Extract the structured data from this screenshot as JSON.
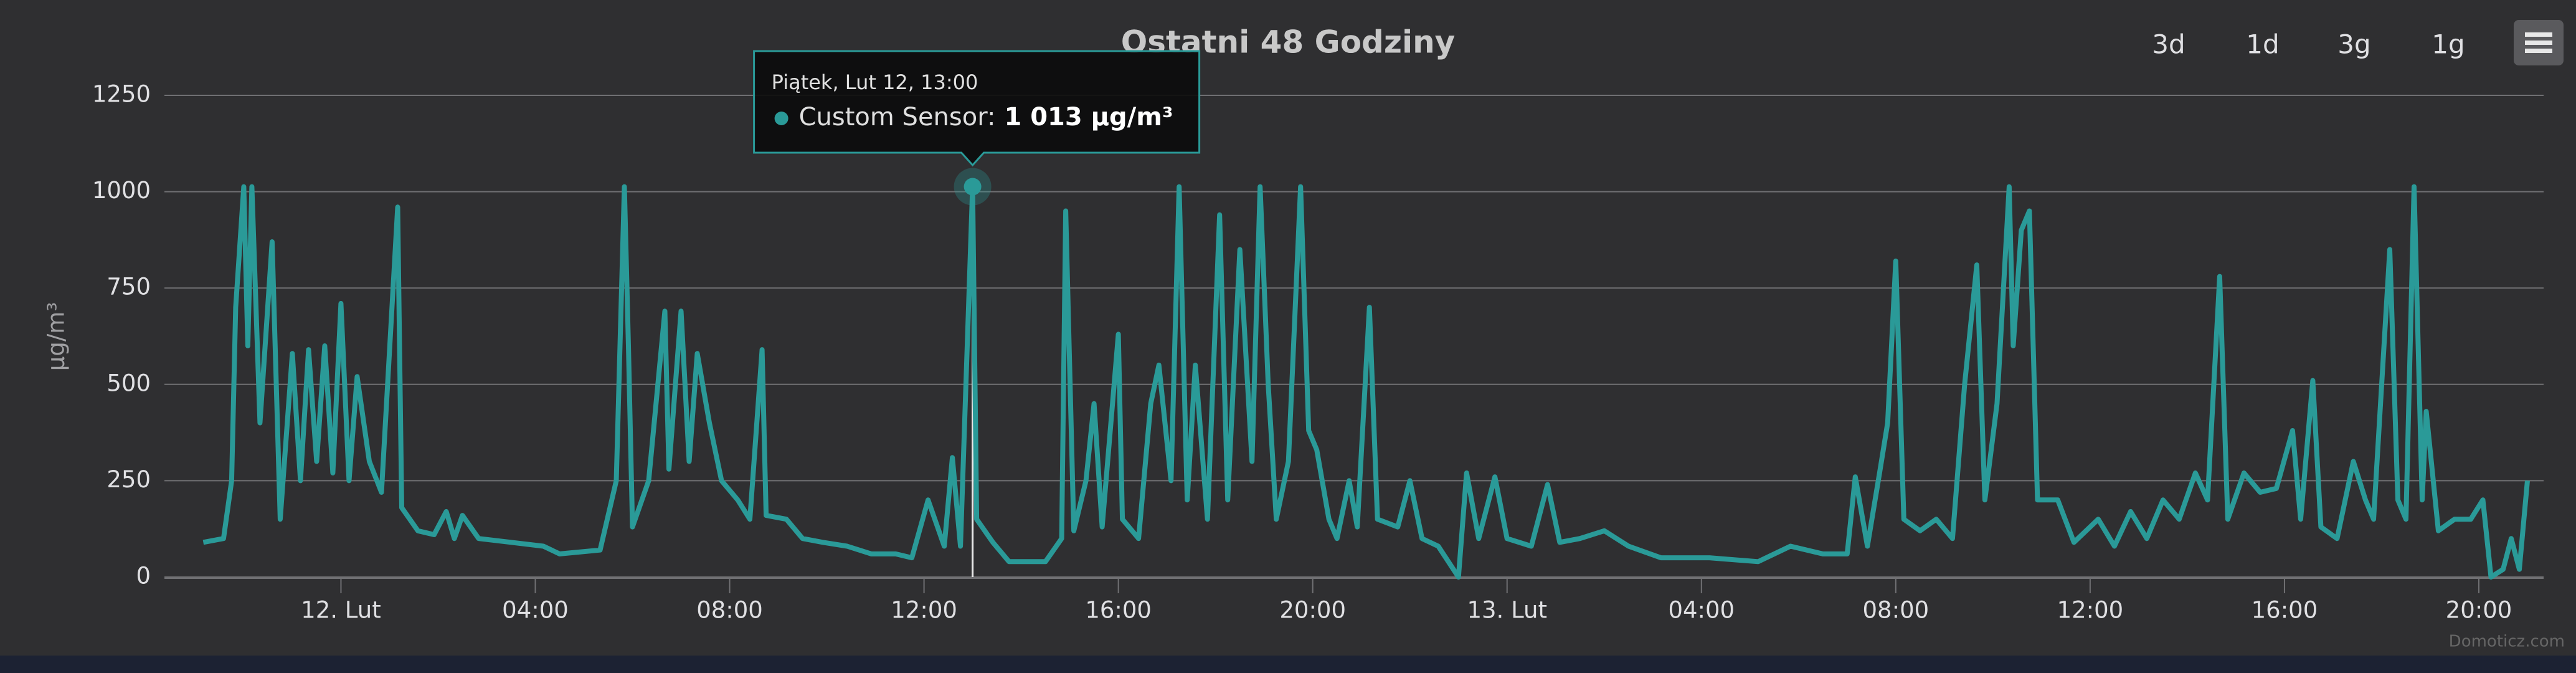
{
  "chart_data": {
    "type": "line",
    "title": "Ostatni 48 Godziny",
    "y_label": "µg/m³",
    "buttons": [
      "3d",
      "1d",
      "3g",
      "1g"
    ],
    "credit": "Domoticz.com",
    "xlim": [
      "Lut 11, 20:22",
      "Lut 13, 21:20"
    ],
    "xticks": [
      {
        "value": "Lut 12, 00:00",
        "label": "12. Lut"
      },
      {
        "value": "Lut 12, 04:00",
        "label": "04:00"
      },
      {
        "value": "Lut 12, 08:00",
        "label": "08:00"
      },
      {
        "value": "Lut 12, 12:00",
        "label": "12:00"
      },
      {
        "value": "Lut 12, 16:00",
        "label": "16:00"
      },
      {
        "value": "Lut 12, 20:00",
        "label": "20:00"
      },
      {
        "value": "Lut 13, 00:00",
        "label": "13. Lut"
      },
      {
        "value": "Lut 13, 04:00",
        "label": "04:00"
      },
      {
        "value": "Lut 13, 08:00",
        "label": "08:00"
      },
      {
        "value": "Lut 13, 12:00",
        "label": "12:00"
      },
      {
        "value": "Lut 13, 16:00",
        "label": "16:00"
      },
      {
        "value": "Lut 13, 20:00",
        "label": "20:00"
      }
    ],
    "ylim": [
      0,
      1250
    ],
    "yticks": [
      0,
      250,
      500,
      750,
      1000,
      1250
    ],
    "grid": true,
    "x": [
      "Lut 11, 21:10",
      "Lut 11, 21:35",
      "Lut 11, 21:45",
      "Lut 11, 21:50",
      "Lut 11, 22:00",
      "Lut 11, 22:05",
      "Lut 11, 22:10",
      "Lut 11, 22:20",
      "Lut 11, 22:35",
      "Lut 11, 22:45",
      "Lut 11, 23:00",
      "Lut 11, 23:10",
      "Lut 11, 23:20",
      "Lut 11, 23:30",
      "Lut 11, 23:40",
      "Lut 11, 23:50",
      "Lut 12, 00:00",
      "Lut 12, 00:10",
      "Lut 12, 00:20",
      "Lut 12, 00:35",
      "Lut 12, 00:50",
      "Lut 12, 01:10",
      "Lut 12, 01:15",
      "Lut 12, 01:35",
      "Lut 12, 01:55",
      "Lut 12, 02:10",
      "Lut 12, 02:20",
      "Lut 12, 02:30",
      "Lut 12, 02:50",
      "Lut 12, 03:30",
      "Lut 12, 04:10",
      "Lut 12, 04:30",
      "Lut 12, 05:20",
      "Lut 12, 05:40",
      "Lut 12, 05:50",
      "Lut 12, 05:55",
      "Lut 12, 06:00",
      "Lut 12, 06:20",
      "Lut 12, 06:40",
      "Lut 12, 06:45",
      "Lut 12, 07:00",
      "Lut 12, 07:10",
      "Lut 12, 07:20",
      "Lut 12, 07:35",
      "Lut 12, 07:50",
      "Lut 12, 08:10",
      "Lut 12, 08:25",
      "Lut 12, 08:40",
      "Lut 12, 08:45",
      "Lut 12, 09:10",
      "Lut 12, 09:30",
      "Lut 12, 09:55",
      "Lut 12, 10:25",
      "Lut 12, 10:55",
      "Lut 12, 11:25",
      "Lut 12, 11:45",
      "Lut 12, 12:05",
      "Lut 12, 12:25",
      "Lut 12, 12:35",
      "Lut 12, 12:45",
      "Lut 12, 13:00",
      "Lut 12, 13:05",
      "Lut 12, 13:25",
      "Lut 12, 13:45",
      "Lut 12, 14:30",
      "Lut 12, 14:50",
      "Lut 12, 14:55",
      "Lut 12, 15:05",
      "Lut 12, 15:20",
      "Lut 12, 15:30",
      "Lut 12, 15:40",
      "Lut 12, 16:00",
      "Lut 12, 16:05",
      "Lut 12, 16:25",
      "Lut 12, 16:40",
      "Lut 12, 16:50",
      "Lut 12, 17:05",
      "Lut 12, 17:15",
      "Lut 12, 17:25",
      "Lut 12, 17:35",
      "Lut 12, 17:50",
      "Lut 12, 18:05",
      "Lut 12, 18:15",
      "Lut 12, 18:30",
      "Lut 12, 18:45",
      "Lut 12, 18:55",
      "Lut 12, 19:05",
      "Lut 12, 19:15",
      "Lut 12, 19:30",
      "Lut 12, 19:45",
      "Lut 12, 19:55",
      "Lut 12, 20:05",
      "Lut 12, 20:20",
      "Lut 12, 20:30",
      "Lut 12, 20:45",
      "Lut 12, 20:55",
      "Lut 12, 21:10",
      "Lut 12, 21:20",
      "Lut 12, 21:45",
      "Lut 12, 22:00",
      "Lut 12, 22:15",
      "Lut 12, 22:35",
      "Lut 12, 23:00",
      "Lut 12, 23:10",
      "Lut 12, 23:25",
      "Lut 12, 23:45",
      "Lut 13, 00:00",
      "Lut 13, 00:30",
      "Lut 13, 00:50",
      "Lut 13, 01:05",
      "Lut 13, 01:30",
      "Lut 13, 02:00",
      "Lut 13, 02:30",
      "Lut 13, 03:10",
      "Lut 13, 04:10",
      "Lut 13, 05:10",
      "Lut 13, 05:50",
      "Lut 13, 06:30",
      "Lut 13, 07:00",
      "Lut 13, 07:10",
      "Lut 13, 07:25",
      "Lut 13, 07:40",
      "Lut 13, 07:50",
      "Lut 13, 08:00",
      "Lut 13, 08:10",
      "Lut 13, 08:30",
      "Lut 13, 08:50",
      "Lut 13, 09:10",
      "Lut 13, 09:25",
      "Lut 13, 09:40",
      "Lut 13, 09:50",
      "Lut 13, 10:05",
      "Lut 13, 10:20",
      "Lut 13, 10:25",
      "Lut 13, 10:35",
      "Lut 13, 10:45",
      "Lut 13, 10:55",
      "Lut 13, 11:20",
      "Lut 13, 11:40",
      "Lut 13, 12:10",
      "Lut 13, 12:30",
      "Lut 13, 12:50",
      "Lut 13, 13:10",
      "Lut 13, 13:30",
      "Lut 13, 13:50",
      "Lut 13, 14:10",
      "Lut 13, 14:25",
      "Lut 13, 14:40",
      "Lut 13, 14:50",
      "Lut 13, 15:10",
      "Lut 13, 15:30",
      "Lut 13, 15:50",
      "Lut 13, 16:10",
      "Lut 13, 16:20",
      "Lut 13, 16:35",
      "Lut 13, 16:45",
      "Lut 13, 17:05",
      "Lut 13, 17:25",
      "Lut 13, 17:40",
      "Lut 13, 17:50",
      "Lut 13, 18:10",
      "Lut 13, 18:20",
      "Lut 13, 18:30",
      "Lut 13, 18:40",
      "Lut 13, 18:50",
      "Lut 13, 18:55",
      "Lut 13, 19:10",
      "Lut 13, 19:30",
      "Lut 13, 19:50",
      "Lut 13, 20:05",
      "Lut 13, 20:15",
      "Lut 13, 20:30",
      "Lut 13, 20:40",
      "Lut 13, 20:50",
      "Lut 13, 21:00"
    ],
    "series": [
      {
        "name": "Custom Sensor",
        "color": "#2a9a98",
        "values": [
          90,
          100,
          250,
          700,
          1013,
          600,
          1013,
          400,
          870,
          150,
          580,
          250,
          590,
          300,
          600,
          270,
          710,
          250,
          520,
          300,
          220,
          960,
          180,
          120,
          110,
          170,
          100,
          160,
          100,
          90,
          80,
          60,
          70,
          250,
          1013,
          600,
          130,
          250,
          690,
          280,
          690,
          300,
          580,
          400,
          250,
          200,
          150,
          590,
          160,
          150,
          100,
          90,
          80,
          60,
          60,
          50,
          200,
          80,
          310,
          80,
          1013,
          150,
          90,
          40,
          40,
          100,
          950,
          120,
          250,
          450,
          130,
          630,
          150,
          100,
          450,
          550,
          250,
          1013,
          200,
          550,
          150,
          940,
          200,
          850,
          300,
          1013,
          500,
          150,
          300,
          1013,
          380,
          330,
          150,
          100,
          250,
          130,
          700,
          150,
          130,
          250,
          100,
          80,
          0,
          270,
          100,
          260,
          100,
          80,
          240,
          90,
          100,
          120,
          80,
          50,
          50,
          40,
          80,
          60,
          60,
          260,
          80,
          270,
          400,
          820,
          150,
          120,
          150,
          100,
          500,
          810,
          200,
          450,
          1013,
          600,
          900,
          950,
          200,
          200,
          90,
          150,
          80,
          170,
          100,
          200,
          150,
          270,
          200,
          780,
          150,
          270,
          220,
          230,
          380,
          150,
          510,
          130,
          100,
          300,
          200,
          150,
          850,
          200,
          150,
          1013,
          200,
          430,
          120,
          150,
          150,
          200,
          0,
          20,
          100,
          20,
          250
        ]
      }
    ],
    "tooltip": {
      "title": "Piątek, Lut 12, 13:00",
      "label": "Custom Sensor:",
      "value_label": "1 013 µg/m³"
    }
  }
}
